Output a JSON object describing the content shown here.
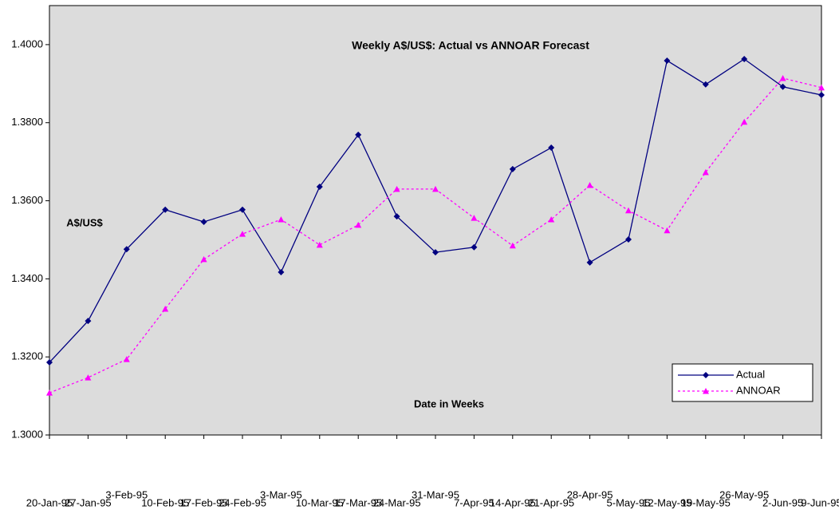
{
  "chart_data": {
    "type": "line",
    "title": "Weekly A$/US$: Actual vs ANNOAR Forecast",
    "y_label": "A$/US$",
    "x_label": "Date in Weeks",
    "categories": [
      "20-Jan-95",
      "27-Jan-95",
      "3-Feb-95",
      "10-Feb-95",
      "17-Feb-95",
      "24-Feb-95",
      "3-Mar-95",
      "10-Mar-95",
      "17-Mar-95",
      "24-Mar-95",
      "31-Mar-95",
      "7-Apr-95",
      "14-Apr-95",
      "21-Apr-95",
      "28-Apr-95",
      "5-May-95",
      "12-May-95",
      "19-May-95",
      "26-May-95",
      "2-Jun-95",
      "9-Jun-95"
    ],
    "series": [
      {
        "name": "Actual",
        "color": "#000080",
        "marker": "diamond",
        "dash": false,
        "values": [
          1.3186,
          1.3292,
          1.3476,
          1.3577,
          1.3546,
          1.3577,
          1.3417,
          1.3636,
          1.3769,
          1.356,
          1.3468,
          1.3481,
          1.3681,
          1.3736,
          1.3442,
          1.3501,
          1.3959,
          1.3898,
          1.3963,
          1.3892,
          1.3871
        ]
      },
      {
        "name": "ANNOAR",
        "color": "#ff00ff",
        "marker": "triangle",
        "dash": true,
        "values": [
          1.3108,
          1.3147,
          1.3194,
          1.3323,
          1.345,
          1.3515,
          1.3552,
          1.3487,
          1.3538,
          1.363,
          1.363,
          1.3556,
          1.3485,
          1.3552,
          1.364,
          1.3575,
          1.3524,
          1.3673,
          1.3802,
          1.3914,
          1.389
        ]
      }
    ],
    "ylim": [
      1.3,
      1.41
    ],
    "yticks": [
      {
        "value": 1.3,
        "label": "1.3000"
      },
      {
        "value": 1.32,
        "label": "1.3200"
      },
      {
        "value": 1.34,
        "label": "1.3400"
      },
      {
        "value": 1.36,
        "label": "1.3600"
      },
      {
        "value": 1.38,
        "label": "1.3800"
      },
      {
        "value": 1.4,
        "label": "1.4000"
      }
    ],
    "legend": "bottom-right",
    "background": "#dcdcdc"
  }
}
